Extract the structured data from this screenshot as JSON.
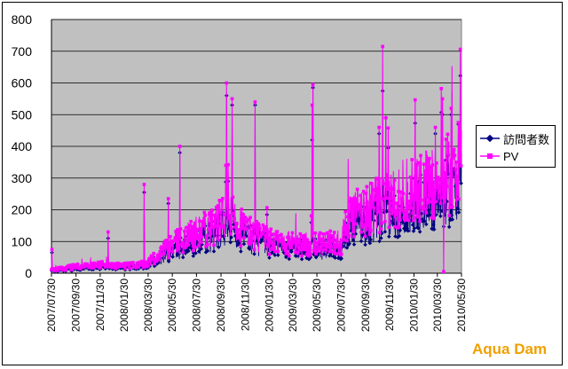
{
  "colors": {
    "plot_bg": "#c0c0c0",
    "grid": "#000000",
    "visitors": "#000080",
    "pv": "#ff00ff",
    "watermark": "#f0a000"
  },
  "watermark": "Aqua Dam",
  "chart_data": {
    "type": "line",
    "title": "",
    "xlabel": "",
    "ylabel": "",
    "ylim": [
      0,
      800
    ],
    "yticks": [
      "0",
      "100",
      "200",
      "300",
      "400",
      "500",
      "600",
      "700",
      "800"
    ],
    "x_start": "2007/07/30",
    "x_end": "2010/05/30",
    "xticks": [
      "2007/07/30",
      "2007/09/30",
      "2007/11/30",
      "2008/01/30",
      "2008/03/30",
      "2008/05/30",
      "2008/07/30",
      "2008/09/30",
      "2008/11/30",
      "2009/01/30",
      "2009/03/30",
      "2009/05/30",
      "2009/07/30",
      "2009/09/30",
      "2009/11/30",
      "2010/01/30",
      "2010/03/30",
      "2010/05/30"
    ],
    "grid": true,
    "legend": "right",
    "series": [
      {
        "name": "訪問者数",
        "marker": "diamond",
        "baseline": [
          [
            "2007/07/30",
            8
          ],
          [
            "2007/09/30",
            15
          ],
          [
            "2007/11/30",
            20
          ],
          [
            "2008/01/30",
            18
          ],
          [
            "2008/03/30",
            25
          ],
          [
            "2008/05/30",
            70
          ],
          [
            "2008/07/30",
            100
          ],
          [
            "2008/08/30",
            115
          ],
          [
            "2008/09/30",
            135
          ],
          [
            "2008/10/30",
            140
          ],
          [
            "2008/11/30",
            115
          ],
          [
            "2009/01/30",
            85
          ],
          [
            "2009/03/30",
            80
          ],
          [
            "2009/05/30",
            75
          ],
          [
            "2009/07/30",
            80
          ],
          [
            "2009/08/15",
            145
          ],
          [
            "2009/09/30",
            160
          ],
          [
            "2009/11/30",
            190
          ],
          [
            "2010/01/30",
            225
          ],
          [
            "2010/03/30",
            230
          ],
          [
            "2010/05/30",
            300
          ]
        ],
        "spikes": [
          [
            "2007/07/31",
            65
          ],
          [
            "2007/12/20",
            110
          ],
          [
            "2008/03/20",
            255
          ],
          [
            "2008/05/20",
            220
          ],
          [
            "2008/06/18",
            380
          ],
          [
            "2008/10/14",
            560
          ],
          [
            "2008/10/28",
            530
          ],
          [
            "2008/12/25",
            530
          ],
          [
            "2009/05/20",
            585
          ],
          [
            "2009/05/18",
            420
          ],
          [
            "2009/11/03",
            440
          ],
          [
            "2009/11/12",
            575
          ],
          [
            "2009/11/20",
            490
          ],
          [
            "2010/03/25",
            440
          ],
          [
            "2010/04/12",
            500
          ],
          [
            "2010/05/04",
            500
          ],
          [
            "2010/05/22",
            470
          ]
        ]
      },
      {
        "name": "PV",
        "marker": "square",
        "baseline": [
          [
            "2007/07/30",
            10
          ],
          [
            "2007/09/30",
            20
          ],
          [
            "2007/11/30",
            25
          ],
          [
            "2008/01/30",
            22
          ],
          [
            "2008/03/30",
            30
          ],
          [
            "2008/05/30",
            85
          ],
          [
            "2008/07/30",
            120
          ],
          [
            "2008/08/30",
            135
          ],
          [
            "2008/09/30",
            160
          ],
          [
            "2008/10/30",
            165
          ],
          [
            "2008/11/30",
            130
          ],
          [
            "2009/01/30",
            95
          ],
          [
            "2009/03/30",
            90
          ],
          [
            "2009/05/30",
            85
          ],
          [
            "2009/07/30",
            95
          ],
          [
            "2009/08/15",
            170
          ],
          [
            "2009/09/30",
            190
          ],
          [
            "2009/11/30",
            220
          ],
          [
            "2010/01/30",
            260
          ],
          [
            "2010/03/30",
            265
          ],
          [
            "2010/05/30",
            340
          ]
        ],
        "spikes": [
          [
            "2007/07/31",
            75
          ],
          [
            "2007/12/20",
            130
          ],
          [
            "2008/03/20",
            280
          ],
          [
            "2008/05/20",
            235
          ],
          [
            "2008/06/18",
            400
          ],
          [
            "2008/10/14",
            600
          ],
          [
            "2008/10/28",
            550
          ],
          [
            "2008/12/25",
            540
          ],
          [
            "2009/05/20",
            595
          ],
          [
            "2009/05/18",
            530
          ],
          [
            "2009/11/03",
            460
          ],
          [
            "2009/11/12",
            715
          ],
          [
            "2009/11/20",
            490
          ],
          [
            "2010/03/25",
            460
          ],
          [
            "2010/04/12",
            550
          ],
          [
            "2010/04/15",
            5
          ],
          [
            "2010/05/04",
            520
          ],
          [
            "2010/05/22",
            475
          ]
        ]
      }
    ]
  }
}
